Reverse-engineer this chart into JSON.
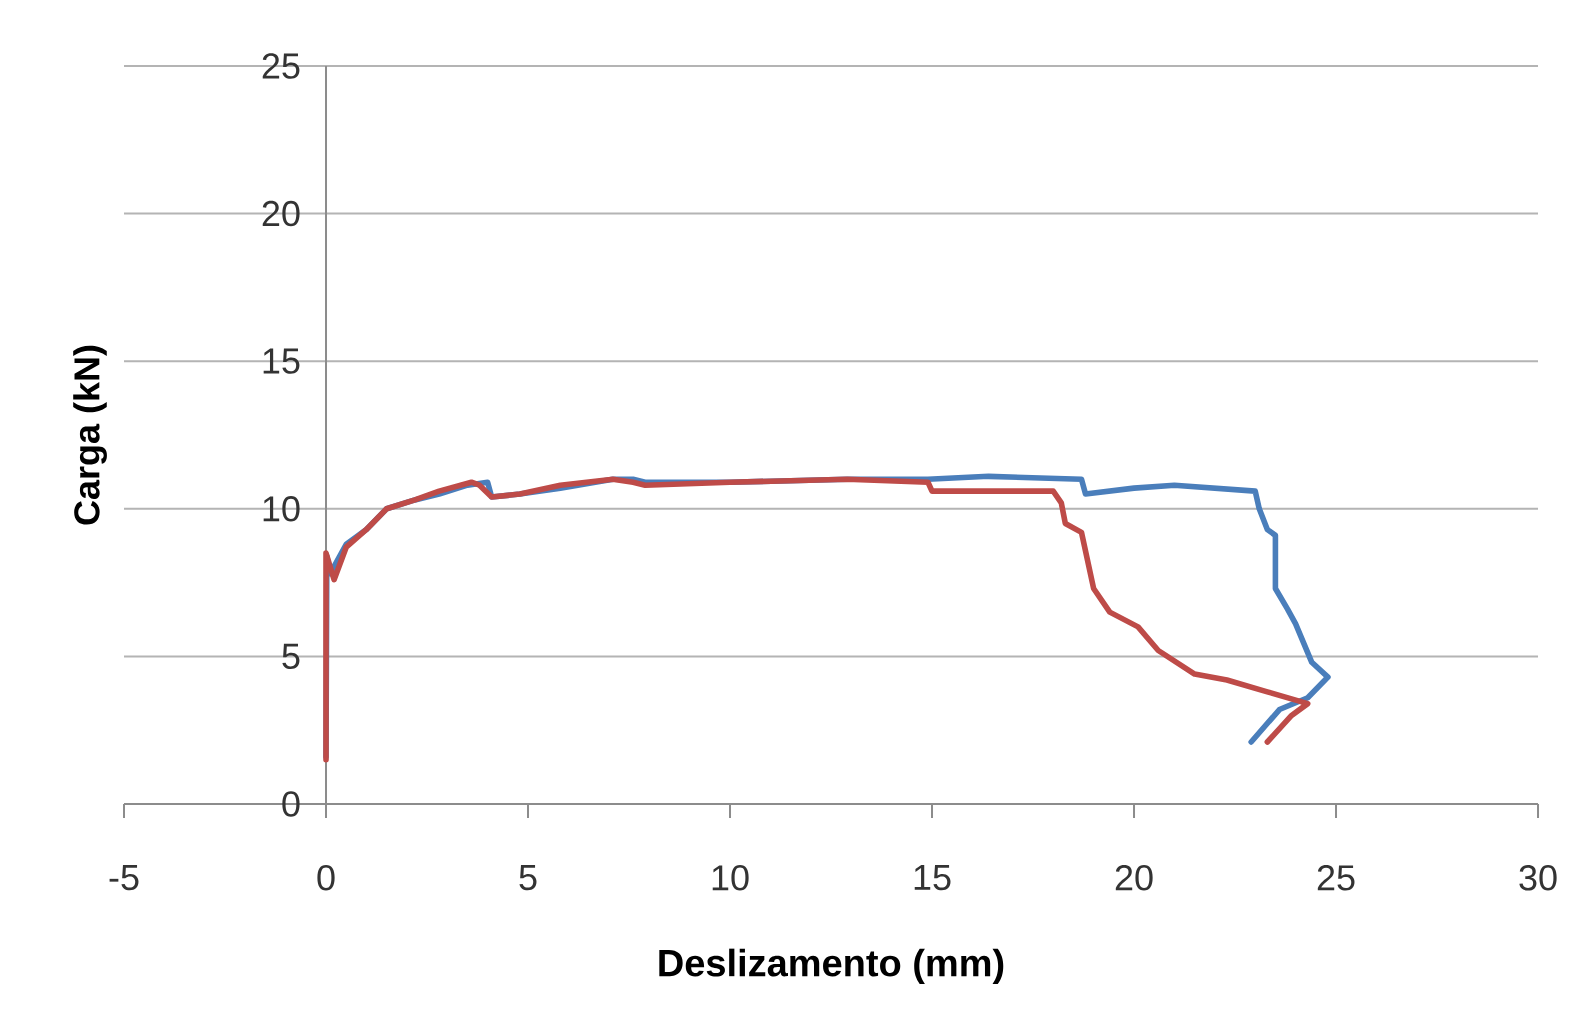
{
  "chart_data": {
    "type": "line",
    "xlabel": "Deslizamento (mm)",
    "ylabel": "Carga (kN)",
    "xlim": [
      -5,
      30
    ],
    "ylim": [
      0,
      25
    ],
    "xticks": [
      -5,
      0,
      5,
      10,
      15,
      20,
      25,
      30
    ],
    "yticks": [
      0,
      5,
      10,
      15,
      20,
      25
    ],
    "grid": "y",
    "series": [
      {
        "color": "#4a7ebb",
        "x": [
          0,
          0.02,
          0.1,
          0.5,
          1.0,
          1.5,
          2.2,
          2.8,
          3.5,
          4.0,
          4.1,
          4.8,
          5.8,
          7.1,
          7.6,
          7.9,
          10.0,
          12.9,
          14.9,
          16.4,
          18.7,
          18.8,
          20.0,
          21.0,
          23.0,
          23.1,
          23.3,
          23.5,
          23.5,
          23.8,
          24.0,
          24.4,
          24.8,
          24.3,
          23.6,
          22.9
        ],
        "values": [
          1.6,
          8.4,
          7.8,
          8.8,
          9.3,
          10.0,
          10.3,
          10.5,
          10.8,
          10.9,
          10.4,
          10.5,
          10.7,
          11.0,
          11.0,
          10.9,
          10.9,
          11.0,
          11.0,
          11.1,
          11.0,
          10.5,
          10.7,
          10.8,
          10.6,
          10.0,
          9.3,
          9.1,
          7.3,
          6.6,
          6.1,
          4.8,
          4.3,
          3.6,
          3.2,
          2.1
        ]
      },
      {
        "color": "#be4b48",
        "x": [
          0,
          0.0,
          0.2,
          0.5,
          1.0,
          1.5,
          2.2,
          2.8,
          3.6,
          3.8,
          4.1,
          4.8,
          5.8,
          7.1,
          7.6,
          7.9,
          10.0,
          12.9,
          14.9,
          15.0,
          18.0,
          18.2,
          18.3,
          18.7,
          19.0,
          19.4,
          20.1,
          20.6,
          21.5,
          22.3,
          23.3,
          24.3,
          23.9,
          23.3
        ],
        "values": [
          1.5,
          8.5,
          7.6,
          8.7,
          9.3,
          10.0,
          10.3,
          10.6,
          10.9,
          10.8,
          10.4,
          10.5,
          10.8,
          11.0,
          10.9,
          10.8,
          10.9,
          11.0,
          10.9,
          10.6,
          10.6,
          10.2,
          9.5,
          9.2,
          7.3,
          6.5,
          6.0,
          5.2,
          4.4,
          4.2,
          3.8,
          3.4,
          3.0,
          2.1
        ]
      }
    ]
  }
}
